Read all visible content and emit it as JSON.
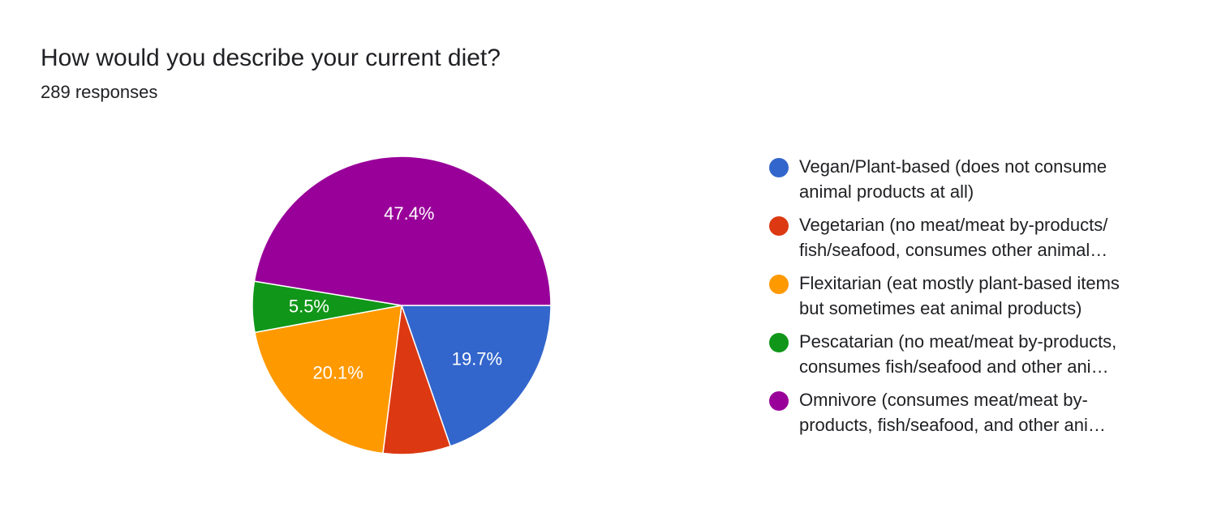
{
  "question": {
    "title": "How would you describe your current diet?",
    "responses": "289 responses"
  },
  "chart_data": {
    "type": "pie",
    "title": "How would you describe your current diet?",
    "legend_position": "right",
    "slices": [
      {
        "name": "Vegan/Plant-based (does not consume animal products at all)",
        "lines": [
          "Vegan/Plant-based (does not consume",
          "animal products at all)"
        ],
        "value": 19.7,
        "label": "19.7%",
        "color": "#3366cc"
      },
      {
        "name": "Vegetarian (no meat/meat by-products/ fish/seafood, consumes other animal…",
        "lines": [
          "Vegetarian (no meat/meat by-products/",
          "fish/seafood, consumes other animal…"
        ],
        "value": 7.3,
        "label": "",
        "color": "#dc3912"
      },
      {
        "name": "Flexitarian (eat mostly plant-based items but sometimes eat animal products)",
        "lines": [
          "Flexitarian (eat mostly plant-based items",
          "but sometimes eat animal products)"
        ],
        "value": 20.1,
        "label": "20.1%",
        "color": "#ff9900"
      },
      {
        "name": "Pescatarian (no meat/meat by-products, consumes fish/seafood and other ani…",
        "lines": [
          "Pescatarian (no meat/meat by-products,",
          "consumes fish/seafood and other ani…"
        ],
        "value": 5.5,
        "label": "5.5%",
        "color": "#109618"
      },
      {
        "name": "Omnivore (consumes meat/meat by-products, fish/seafood, and other ani…",
        "lines": [
          "Omnivore (consumes meat/meat by-",
          "products, fish/seafood, and other ani…"
        ],
        "value": 47.4,
        "label": "47.4%",
        "color": "#990099"
      }
    ]
  }
}
